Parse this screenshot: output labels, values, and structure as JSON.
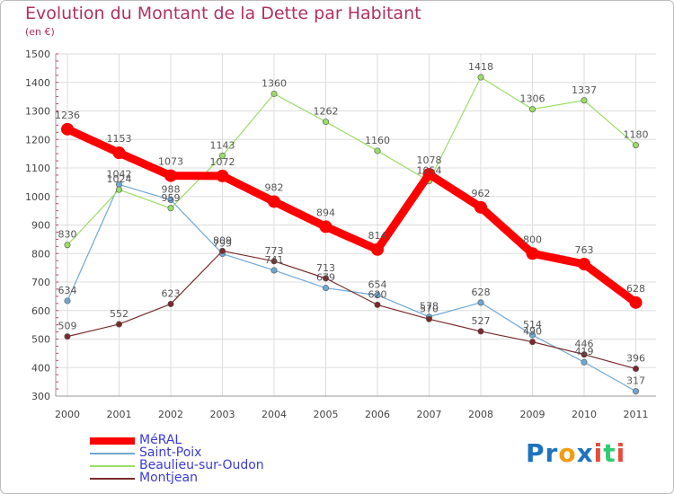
{
  "chart_data": {
    "type": "line",
    "title": "Evolution du Montant de la Dette par Habitant",
    "subtitle": "(en €)",
    "x": [
      "2000",
      "2001",
      "2002",
      "2003",
      "2004",
      "2005",
      "2006",
      "2007",
      "2008",
      "2009",
      "2010",
      "2011"
    ],
    "ylim": [
      300,
      1500
    ],
    "yticks": [
      300,
      400,
      500,
      600,
      700,
      800,
      900,
      1000,
      1100,
      1200,
      1300,
      1400,
      1500
    ],
    "grid": true,
    "legend_position": "bottom-left",
    "series": [
      {
        "name": "MéRAL",
        "color": "#ff0000",
        "values": [
          1236,
          1153,
          1073,
          1072,
          982,
          894,
          814,
          1078,
          962,
          800,
          763,
          628
        ]
      },
      {
        "name": "Saint-Poix",
        "color": "#6fa8d6",
        "values": [
          634,
          1042,
          988,
          799,
          741,
          679,
          654,
          578,
          628,
          514,
          419,
          317
        ]
      },
      {
        "name": "Beaulieu-sur-Oudon",
        "color": "#99dd66",
        "values": [
          830,
          1024,
          959,
          1143,
          1360,
          1262,
          1160,
          1054,
          1418,
          1306,
          1337,
          1180
        ]
      },
      {
        "name": "Montjean",
        "color": "#7a2a2a",
        "values": [
          509,
          552,
          623,
          809,
          773,
          713,
          620,
          570,
          527,
          490,
          446,
          396
        ]
      }
    ]
  },
  "logo": {
    "letters": [
      "P",
      "r",
      "o",
      "x",
      "i",
      "t",
      "i"
    ],
    "colors": [
      "#1e73be",
      "#1e73be",
      "#f39c12",
      "#1e73be",
      "#e74c3c",
      "#2ecc71",
      "#e74c3c"
    ]
  }
}
